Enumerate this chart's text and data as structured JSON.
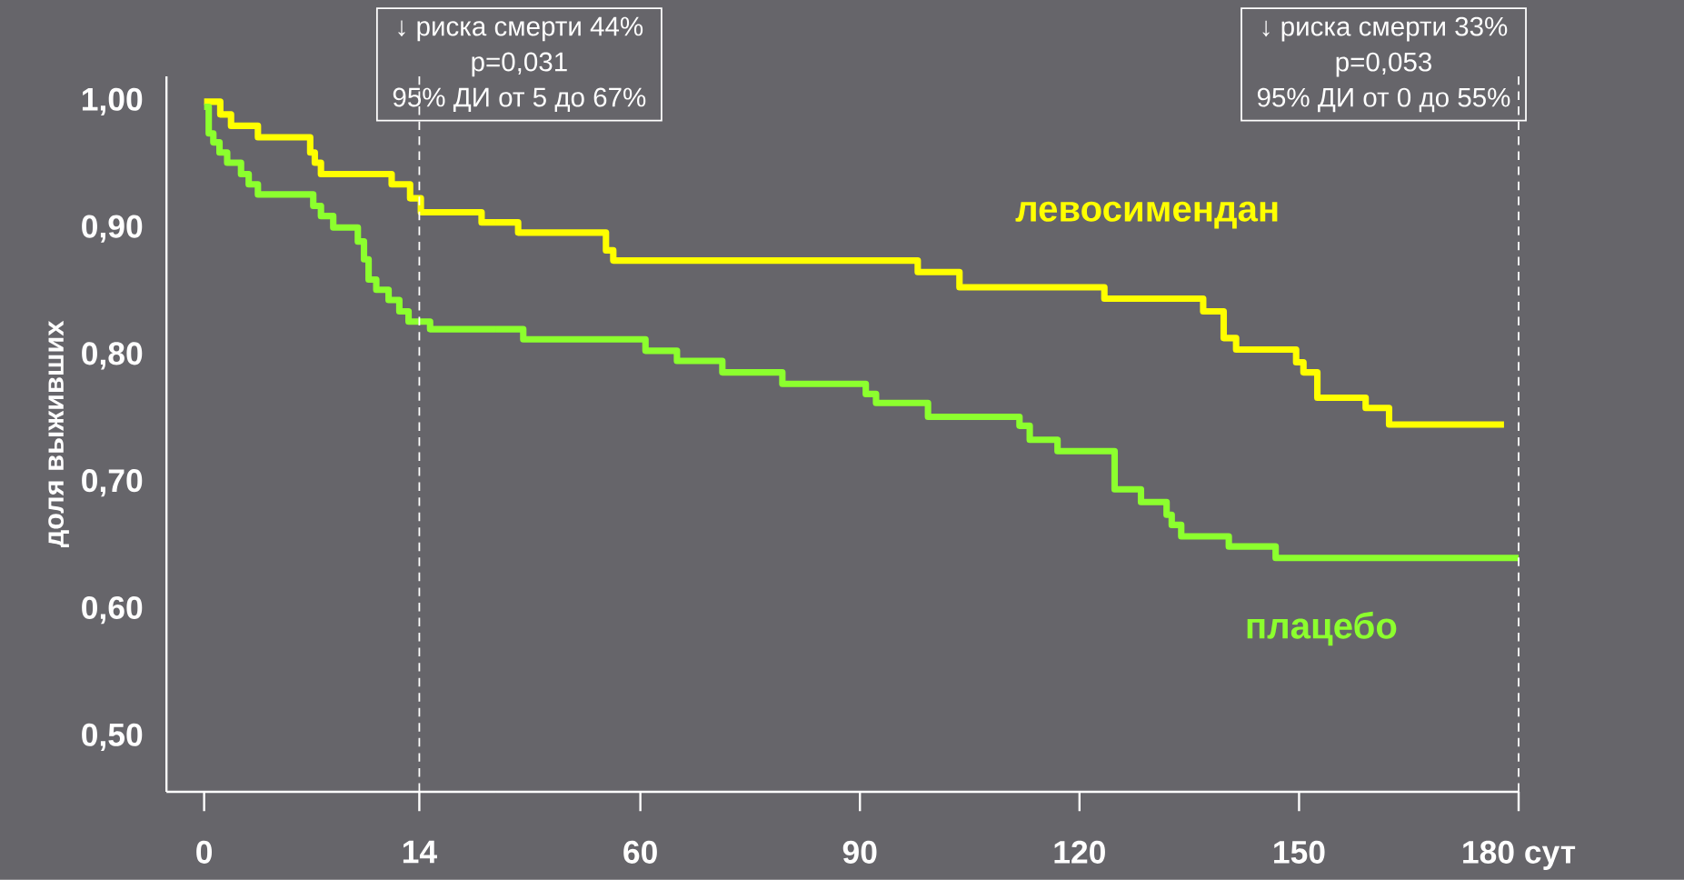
{
  "chart_data": [
    {
      "type": "step",
      "ylabel": "доля выживших",
      "xlim": [
        -2.45,
        19
      ],
      "ylim": [
        0.457,
        1.02
      ],
      "xticks": [
        0,
        14
      ],
      "yticks": [
        {
          "value": 0.5,
          "label": "0,50"
        },
        {
          "value": 0.6,
          "label": "0,60"
        },
        {
          "value": 0.7,
          "label": "0,70"
        },
        {
          "value": 0.8,
          "label": "0,80"
        },
        {
          "value": 0.9,
          "label": "0,90"
        },
        {
          "value": 1.0,
          "label": "1,00"
        }
      ],
      "ref_lines": [
        {
          "axis": "x",
          "value": 14,
          "color": "#ffffff",
          "line_style": "dashed"
        }
      ],
      "annotations": [
        "↓ риска смерти 44%",
        "p=0,031",
        "95% ДИ от 5 до 67%"
      ],
      "series": [
        {
          "color": "#ffff00",
          "x": [
            0,
            1.05,
            1.75,
            3.5,
            6.9,
            7.2,
            7.6,
            12.2,
            13.4,
            14.1,
            18.05,
            19
          ],
          "values": [
            1.0,
            0.99,
            0.981,
            0.972,
            0.96,
            0.952,
            0.943,
            0.935,
            0.924,
            0.913,
            0.905,
            0.905
          ]
        },
        {
          "color": "#8cff2e",
          "x": [
            0,
            0.3,
            0.6,
            1.0,
            1.5,
            2.4,
            2.9,
            3.5,
            7.1,
            7.6,
            8.4,
            10.0,
            10.4,
            10.7,
            11.2,
            12.0,
            12.7,
            13.3,
            14.7,
            19
          ],
          "values": [
            0.996,
            0.975,
            0.968,
            0.96,
            0.952,
            0.943,
            0.935,
            0.927,
            0.918,
            0.91,
            0.901,
            0.89,
            0.876,
            0.86,
            0.852,
            0.844,
            0.835,
            0.827,
            0.821,
            0.821
          ]
        }
      ]
    },
    {
      "type": "step",
      "xlim": [
        40.3,
        180
      ],
      "ylim": [
        0.457,
        1.02
      ],
      "tick_labels": "x",
      "xticks": [
        60,
        90,
        120,
        150,
        {
          "value": 180,
          "label": "180 сут"
        }
      ],
      "ref_lines": [
        {
          "axis": "x",
          "value": 180,
          "color": "#ffffff",
          "line_style": "dashed"
        }
      ],
      "annotations": [
        "↓ риска смерти 33%",
        "p=0,053",
        "95% ДИ от 0 до 55%"
      ],
      "series": [
        {
          "name": "левосимендан",
          "color": "#ffff00",
          "x": [
            40.3,
            43.3,
            55.3,
            56.3,
            97.9,
            103.6,
            123.4,
            136.9,
            139.7,
            141.4,
            149.6,
            150.6,
            152.5,
            159.1,
            162.3,
            178
          ],
          "values": [
            0.905,
            0.897,
            0.883,
            0.875,
            0.866,
            0.854,
            0.845,
            0.835,
            0.814,
            0.805,
            0.795,
            0.787,
            0.767,
            0.759,
            0.746,
            0.746
          ]
        },
        {
          "name": "плацебо",
          "color": "#8cff2e",
          "x": [
            40.3,
            44.0,
            60.7,
            65.0,
            71.2,
            79.4,
            90.8,
            92.2,
            99.3,
            111.8,
            113.2,
            117.0,
            124.8,
            128.4,
            131.9,
            132.6,
            133.9,
            140.4,
            146.8,
            180
          ],
          "values": [
            0.821,
            0.813,
            0.804,
            0.796,
            0.787,
            0.778,
            0.77,
            0.763,
            0.752,
            0.745,
            0.734,
            0.725,
            0.695,
            0.685,
            0.675,
            0.667,
            0.658,
            0.65,
            0.641,
            0.641
          ]
        }
      ]
    }
  ]
}
